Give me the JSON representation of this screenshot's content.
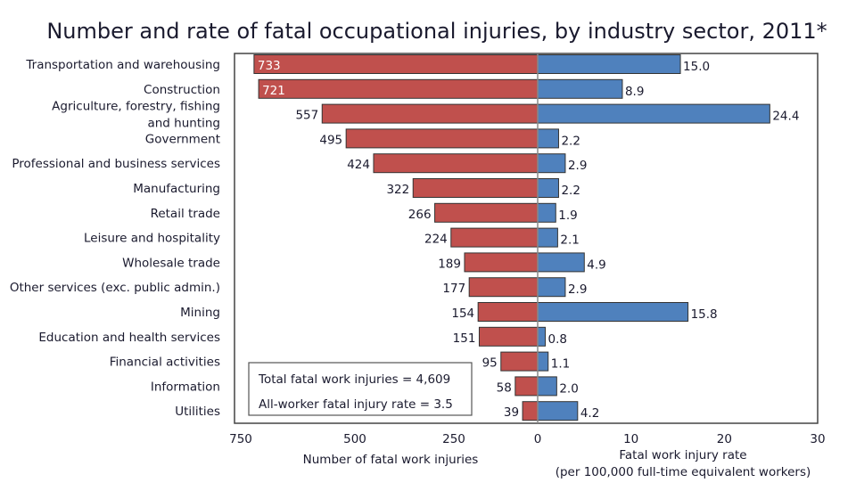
{
  "chart_data": {
    "type": "bar",
    "title": "Number and rate of fatal occupational injuries, by industry sector, 2011*",
    "categories": [
      "Transportation and warehousing",
      "Construction",
      "Agriculture, forestry, fishing\nand hunting",
      "Government",
      "Professional and business services",
      "Manufacturing",
      "Retail trade",
      "Leisure and hospitality",
      "Wholesale trade",
      "Other services (exc. public admin.)",
      "Mining",
      "Education and health services",
      "Financial activities",
      "Information",
      "Utilities"
    ],
    "series": [
      {
        "values": [
          733,
          721,
          557,
          495,
          424,
          322,
          266,
          224,
          189,
          177,
          154,
          151,
          95,
          58,
          39
        ],
        "color": "#c0504d",
        "direction": "left"
      },
      {
        "values": [
          15.0,
          8.9,
          24.4,
          2.2,
          2.9,
          2.2,
          1.9,
          2.1,
          4.9,
          2.9,
          15.8,
          0.8,
          1.1,
          2.0,
          4.2
        ],
        "color": "#4f81bd",
        "direction": "right"
      }
    ],
    "left_axis": {
      "label": "Number of fatal work injuries",
      "ticks": [
        "750",
        "500",
        "250",
        "0"
      ],
      "tick_values": [
        750,
        500,
        250,
        0
      ],
      "range": [
        0,
        750
      ]
    },
    "right_axis": {
      "label": "Fatal work injury rate",
      "label2": "(per 100,000 full-time equivalent workers)",
      "ticks": [
        "10",
        "20",
        "30"
      ],
      "tick_values": [
        10,
        20,
        30
      ],
      "range": [
        0,
        30
      ]
    },
    "annotation": {
      "line1": "Total fatal work injuries = 4,609",
      "line2": "All-worker fatal injury rate = 3.5"
    },
    "grid": false
  }
}
